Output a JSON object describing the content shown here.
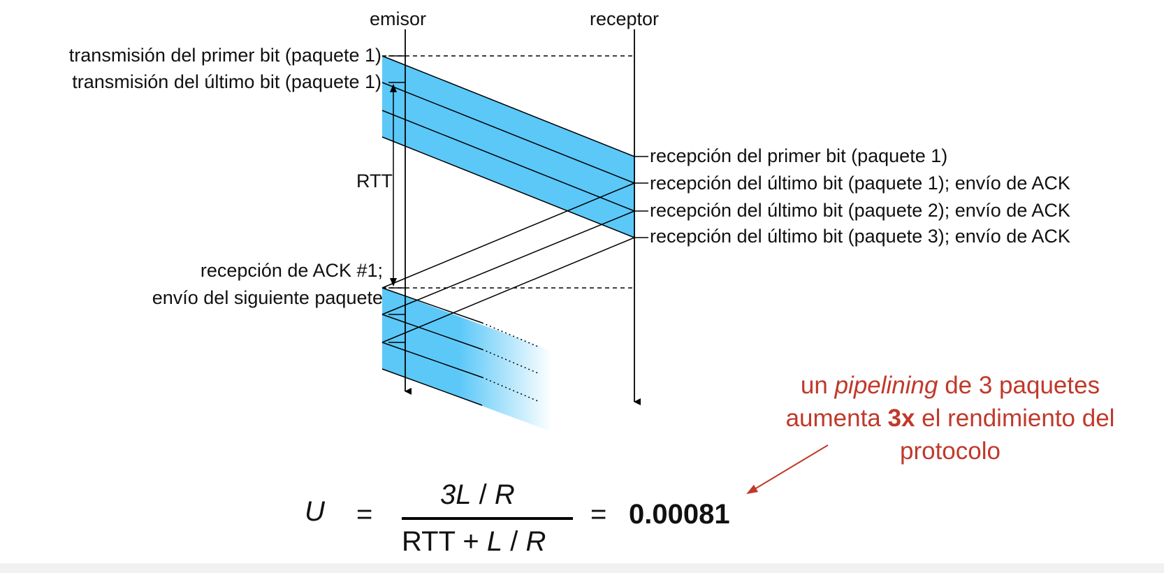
{
  "header": {
    "sender_label": "emisor",
    "receiver_label": "receptor"
  },
  "sender_events": {
    "first_bit_pkt1": "transmisión del primer bit (paquete 1)",
    "last_bit_pkt1": "transmisión del último bit (paquete 1)",
    "rtt": "RTT",
    "ack_rx_line1": "recepción de ACK #1;",
    "ack_rx_line2": "envío del siguiente paquete"
  },
  "receiver_events": {
    "first_bit_pkt1": "recepción del primer bit (paquete 1)",
    "last_bit_pkt1": "recepción del último bit (paquete 1); envío de ACK",
    "last_bit_pkt2": "recepción del último bit (paquete 2); envío de ACK",
    "last_bit_pkt3": "recepción del último bit (paquete 3); envío de ACK"
  },
  "annotation": {
    "pre": "un ",
    "italic": "pipelining",
    "mid": " de 3 paquetes aumenta ",
    "bold": "3x",
    "post": " el rendimiento del protocolo"
  },
  "formula": {
    "lhs": "U",
    "eq1": "=",
    "num_a": "3L",
    "num_b": " / ",
    "num_c": "R",
    "den_a": "RTT + ",
    "den_b": "L",
    "den_c": " / ",
    "den_d": "R",
    "eq2": "=",
    "result": "0.00081"
  },
  "colors": {
    "packet_band": "#5bc8f8",
    "annotation": "#c0392b"
  }
}
